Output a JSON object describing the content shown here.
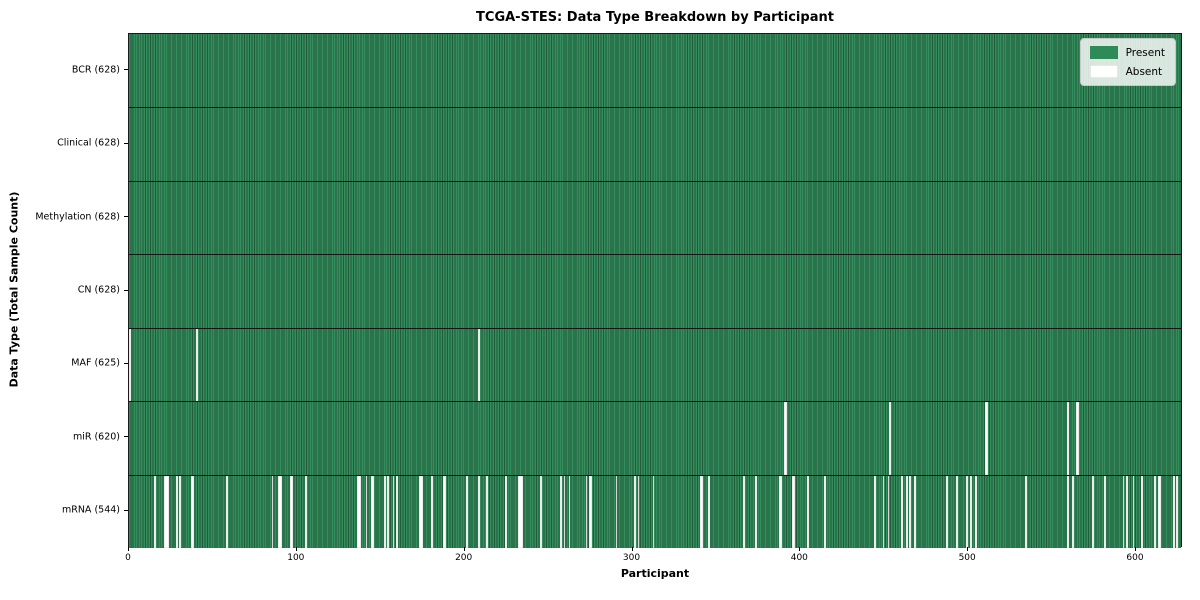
{
  "chart_data": {
    "type": "heatmap",
    "title": "TCGA-STES: Data Type Breakdown by Participant",
    "xlabel": "Participant",
    "ylabel": "Data Type (Total Sample Count)",
    "n_participants": 628,
    "x_ticks": [
      0,
      100,
      200,
      300,
      400,
      500,
      600
    ],
    "present_color": "#2e8b57",
    "absent_color": "#ffffff",
    "legend": [
      {
        "label": "Present",
        "color": "#2e8b57"
      },
      {
        "label": "Absent",
        "color": "#ffffff"
      }
    ],
    "legend_position": "upper right",
    "grid": false,
    "rows": [
      {
        "label": "BCR (628)",
        "data_type": "BCR",
        "present_total": 628,
        "absent_participants": []
      },
      {
        "label": "Clinical (628)",
        "data_type": "Clinical",
        "present_total": 628,
        "absent_participants": []
      },
      {
        "label": "Methylation (628)",
        "data_type": "Methylation",
        "present_total": 628,
        "absent_participants": []
      },
      {
        "label": "CN (628)",
        "data_type": "CN",
        "present_total": 628,
        "absent_participants": []
      },
      {
        "label": "MAF (625)",
        "data_type": "MAF",
        "present_total": 625,
        "absent_participants": [
          0,
          40,
          208
        ]
      },
      {
        "label": "miR (620)",
        "data_type": "miR",
        "present_total": 620,
        "absent_participants": [
          390,
          391,
          453,
          510,
          511,
          559,
          564,
          565
        ]
      },
      {
        "label": "mRNA (544)",
        "data_type": "mRNA",
        "present_total": 544,
        "absent_participants": [
          15,
          21,
          22,
          23,
          28,
          30,
          37,
          38,
          58,
          85,
          89,
          90,
          96,
          97,
          105,
          136,
          137,
          141,
          144,
          145,
          152,
          154,
          157,
          159,
          173,
          174,
          180,
          187,
          188,
          201,
          208,
          213,
          224,
          232,
          233,
          234,
          245,
          257,
          259,
          262,
          272,
          274,
          275,
          290,
          301,
          303,
          312,
          340,
          341,
          345,
          366,
          373,
          387,
          388,
          395,
          396,
          404,
          414,
          444,
          449,
          452,
          460,
          463,
          465,
          468,
          487,
          493,
          499,
          501,
          504,
          534,
          559,
          562,
          574,
          581,
          592,
          594,
          598,
          603,
          611,
          613,
          614,
          622,
          624
        ]
      }
    ]
  }
}
